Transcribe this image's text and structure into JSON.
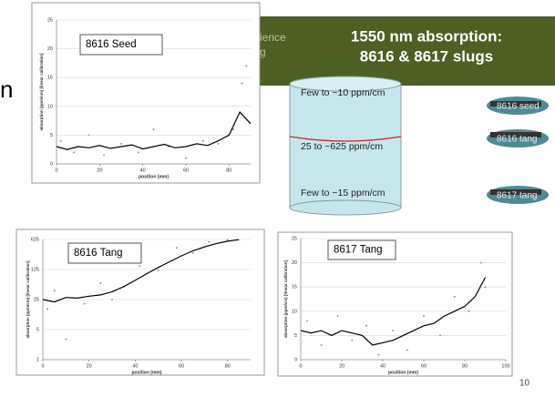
{
  "slide": {
    "header_line1": "1550 nm absorption:",
    "header_line2": "8616 & 8617 slugs",
    "behind_a": "ience",
    "behind_b": "g",
    "edge_letter": "n",
    "labels": [
      "Few to ~10 ppm/cm",
      "25 to ~625 ppm/cm",
      "Few to ~15 ppm/cm"
    ],
    "pieces": [
      "8616 seed",
      "8616 tang",
      "8617 tang"
    ],
    "page_number": "10"
  },
  "chart_data": [
    {
      "type": "line",
      "title": "8616 Seed",
      "x_label": "position (mm)",
      "y_label": "absorption (ppm/cm) [linear calibration]",
      "xlim": [
        0,
        90
      ],
      "xticks": [
        0,
        20,
        40,
        60,
        80
      ],
      "ylim": [
        0,
        25
      ],
      "yticks": [
        0,
        5,
        10,
        15,
        20,
        25
      ],
      "grid": true,
      "log_y": false,
      "color": "#000000",
      "x": [
        0,
        5,
        10,
        15,
        20,
        25,
        30,
        35,
        40,
        45,
        50,
        55,
        60,
        65,
        70,
        75,
        80,
        85,
        90
      ],
      "values": [
        3,
        2.5,
        3,
        2.8,
        3.2,
        2.7,
        3,
        3.3,
        2.6,
        3,
        3.4,
        2.8,
        3,
        3.5,
        3.2,
        4,
        5,
        9,
        7
      ],
      "scatter": {
        "color": "#6a9bd8",
        "x": [
          2,
          8,
          15,
          22,
          30,
          38,
          45,
          52,
          60,
          68,
          75,
          82,
          86,
          88
        ],
        "values": [
          4,
          2,
          5,
          1.5,
          3.5,
          2,
          6,
          3,
          1,
          4,
          3.5,
          6,
          14,
          17
        ]
      }
    },
    {
      "type": "line",
      "title": "8616 Tang",
      "x_label": "position (mm)",
      "y_label": "absorption (ppm/cm) [linear calibration]",
      "xlim": [
        0,
        90
      ],
      "xticks": [
        0,
        20,
        40,
        60,
        80
      ],
      "ylim": [
        1,
        625
      ],
      "yticks": [
        1,
        5,
        25,
        125,
        625
      ],
      "grid": true,
      "log_y": true,
      "color": "#000000",
      "x": [
        0,
        5,
        10,
        15,
        20,
        25,
        30,
        35,
        40,
        45,
        50,
        55,
        60,
        65,
        70,
        75,
        80,
        85
      ],
      "values": [
        25,
        22,
        28,
        27,
        30,
        32,
        38,
        50,
        70,
        100,
        140,
        190,
        260,
        340,
        420,
        500,
        570,
        620
      ],
      "scatter": {
        "color": "#6a9bd8",
        "x": [
          2,
          5,
          10,
          18,
          25,
          30,
          35,
          42,
          50,
          58,
          65,
          72,
          80
        ],
        "values": [
          15,
          40,
          3,
          20,
          60,
          25,
          50,
          150,
          120,
          400,
          300,
          550,
          620
        ]
      }
    },
    {
      "type": "line",
      "title": "8617 Tang",
      "x_label": "position (mm)",
      "y_label": "absorption (ppm/cm) [linear calibration]",
      "xlim": [
        0,
        100
      ],
      "xticks": [
        0,
        20,
        40,
        60,
        80,
        100
      ],
      "ylim": [
        0,
        25
      ],
      "yticks": [
        0,
        5,
        10,
        15,
        20,
        25
      ],
      "grid": true,
      "log_y": false,
      "color": "#000000",
      "x": [
        0,
        5,
        10,
        15,
        20,
        25,
        30,
        35,
        40,
        45,
        50,
        55,
        60,
        65,
        70,
        75,
        80,
        85,
        90
      ],
      "values": [
        6,
        5.5,
        6,
        5,
        6,
        5.5,
        5,
        3,
        3.5,
        4,
        5,
        6,
        7,
        7.5,
        9,
        10,
        11,
        13,
        17
      ],
      "scatter": {
        "color": "#6a9bd8",
        "x": [
          3,
          10,
          18,
          25,
          32,
          38,
          45,
          52,
          60,
          68,
          75,
          82,
          88,
          90
        ],
        "values": [
          8,
          3,
          9,
          4,
          7,
          1,
          6,
          2,
          9,
          5,
          13,
          10,
          20,
          15
        ]
      }
    }
  ]
}
